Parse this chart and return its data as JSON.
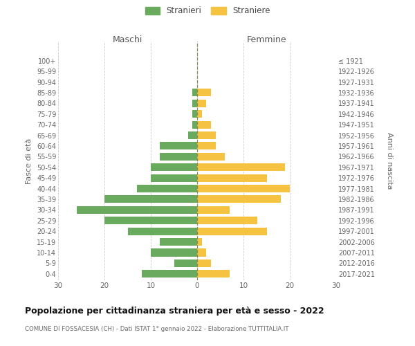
{
  "age_groups": [
    "0-4",
    "5-9",
    "10-14",
    "15-19",
    "20-24",
    "25-29",
    "30-34",
    "35-39",
    "40-44",
    "45-49",
    "50-54",
    "55-59",
    "60-64",
    "65-69",
    "70-74",
    "75-79",
    "80-84",
    "85-89",
    "90-94",
    "95-99",
    "100+"
  ],
  "birth_years": [
    "2017-2021",
    "2012-2016",
    "2007-2011",
    "2002-2006",
    "1997-2001",
    "1992-1996",
    "1987-1991",
    "1982-1986",
    "1977-1981",
    "1972-1976",
    "1967-1971",
    "1962-1966",
    "1957-1961",
    "1952-1956",
    "1947-1951",
    "1942-1946",
    "1937-1941",
    "1932-1936",
    "1927-1931",
    "1922-1926",
    "≤ 1921"
  ],
  "males": [
    12,
    5,
    10,
    8,
    15,
    20,
    26,
    20,
    13,
    10,
    10,
    8,
    8,
    2,
    1,
    1,
    1,
    1,
    0,
    0,
    0
  ],
  "females": [
    7,
    3,
    2,
    1,
    15,
    13,
    7,
    18,
    20,
    15,
    19,
    6,
    4,
    4,
    3,
    1,
    2,
    3,
    0,
    0,
    0
  ],
  "male_color": "#6aaa5e",
  "female_color": "#f5c242",
  "background_color": "#ffffff",
  "grid_color": "#cccccc",
  "center_line_color": "#888855",
  "xlim": 30,
  "title": "Popolazione per cittadinanza straniera per età e sesso - 2022",
  "subtitle": "COMUNE DI FOSSACESIA (CH) - Dati ISTAT 1° gennaio 2022 - Elaborazione TUTTITALIA.IT",
  "ylabel_left": "Fasce di età",
  "ylabel_right": "Anni di nascita",
  "xlabel_left": "Maschi",
  "xlabel_right": "Femmine",
  "legend_male": "Stranieri",
  "legend_female": "Straniere"
}
